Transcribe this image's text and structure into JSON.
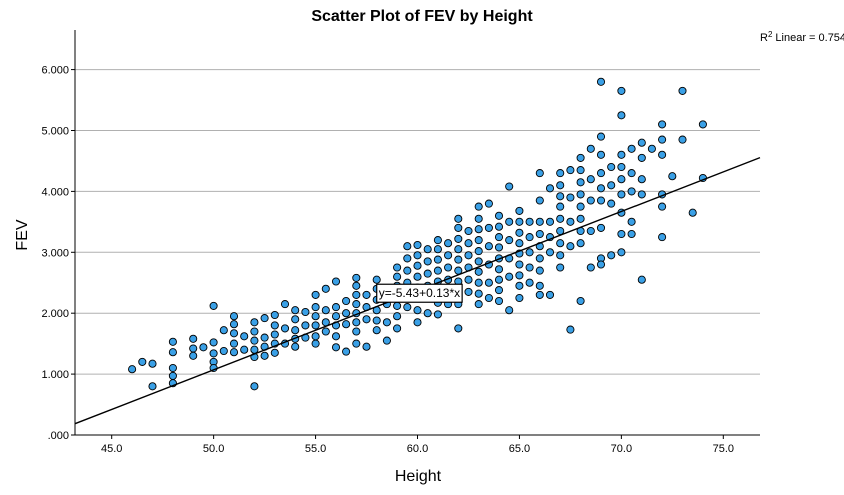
{
  "chart_data": {
    "type": "scatter",
    "title": "Scatter Plot of FEV by Height",
    "xlabel": "Height",
    "ylabel": "FEV",
    "xlim": [
      43.2,
      76.8
    ],
    "ylim": [
      0.0,
      6.65
    ],
    "xticks": [
      "45.0",
      "50.0",
      "55.0",
      "60.0",
      "65.0",
      "70.0",
      "75.0"
    ],
    "yticks": [
      ".000",
      "1.000",
      "2.000",
      "3.000",
      "4.000",
      "5.000",
      "6.000"
    ],
    "grid": "horizontal",
    "r2_label": "Linear = 0.754",
    "fit": {
      "intercept": -5.43,
      "slope": 0.13,
      "equation_label": "y=-5.43+0.13*x"
    },
    "colors": {
      "marker_fill": "#3aa0e6",
      "marker_edge": "#000000",
      "gridline": "#b0b0b0",
      "fit_line": "#000000"
    },
    "series": [
      {
        "points": [
          [
            46,
            1.08
          ],
          [
            46.5,
            1.2
          ],
          [
            47,
            1.17
          ],
          [
            47,
            0.8
          ],
          [
            48,
            1.53
          ],
          [
            48,
            1.36
          ],
          [
            48,
            1.1
          ],
          [
            48,
            0.97
          ],
          [
            48,
            0.85
          ],
          [
            49,
            1.58
          ],
          [
            49,
            1.42
          ],
          [
            49,
            1.3
          ],
          [
            49.5,
            1.44
          ],
          [
            50,
            2.12
          ],
          [
            50,
            1.52
          ],
          [
            50,
            1.34
          ],
          [
            50,
            1.2
          ],
          [
            50,
            1.1
          ],
          [
            50.5,
            1.72
          ],
          [
            50.5,
            1.38
          ],
          [
            51,
            1.95
          ],
          [
            51,
            1.82
          ],
          [
            51,
            1.67
          ],
          [
            51,
            1.5
          ],
          [
            51,
            1.36
          ],
          [
            51.5,
            1.62
          ],
          [
            51.5,
            1.4
          ],
          [
            52,
            1.85
          ],
          [
            52,
            1.7
          ],
          [
            52,
            1.55
          ],
          [
            52,
            1.4
          ],
          [
            52,
            1.28
          ],
          [
            52,
            0.8
          ],
          [
            52.5,
            1.92
          ],
          [
            52.5,
            1.6
          ],
          [
            52.5,
            1.45
          ],
          [
            52.5,
            1.3
          ],
          [
            53,
            1.97
          ],
          [
            53,
            1.8
          ],
          [
            53,
            1.65
          ],
          [
            53,
            1.5
          ],
          [
            53,
            1.35
          ],
          [
            53.5,
            2.15
          ],
          [
            53.5,
            1.75
          ],
          [
            53.5,
            1.5
          ],
          [
            54,
            2.05
          ],
          [
            54,
            1.9
          ],
          [
            54,
            1.72
          ],
          [
            54,
            1.58
          ],
          [
            54,
            1.45
          ],
          [
            54.5,
            2.02
          ],
          [
            54.5,
            1.8
          ],
          [
            54.5,
            1.6
          ],
          [
            55,
            2.3
          ],
          [
            55,
            2.1
          ],
          [
            55,
            1.95
          ],
          [
            55,
            1.8
          ],
          [
            55,
            1.62
          ],
          [
            55,
            1.5
          ],
          [
            55.5,
            2.4
          ],
          [
            55.5,
            2.05
          ],
          [
            55.5,
            1.85
          ],
          [
            55.5,
            1.7
          ],
          [
            56,
            2.52
          ],
          [
            56,
            2.1
          ],
          [
            56,
            1.95
          ],
          [
            56,
            1.8
          ],
          [
            56,
            1.62
          ],
          [
            56,
            1.44
          ],
          [
            56.5,
            2.2
          ],
          [
            56.5,
            2.0
          ],
          [
            56.5,
            1.82
          ],
          [
            56.5,
            1.37
          ],
          [
            57,
            2.58
          ],
          [
            57,
            2.45
          ],
          [
            57,
            2.3
          ],
          [
            57,
            2.15
          ],
          [
            57,
            2.0
          ],
          [
            57,
            1.85
          ],
          [
            57,
            1.7
          ],
          [
            57,
            1.5
          ],
          [
            57.5,
            2.3
          ],
          [
            57.5,
            2.1
          ],
          [
            57.5,
            1.9
          ],
          [
            57.5,
            1.45
          ],
          [
            58,
            2.55
          ],
          [
            58,
            2.4
          ],
          [
            58,
            2.22
          ],
          [
            58,
            2.05
          ],
          [
            58,
            1.88
          ],
          [
            58,
            1.72
          ],
          [
            58.5,
            2.4
          ],
          [
            58.5,
            2.15
          ],
          [
            58.5,
            1.85
          ],
          [
            58.5,
            1.55
          ],
          [
            59,
            2.75
          ],
          [
            59,
            2.6
          ],
          [
            59,
            2.45
          ],
          [
            59,
            2.3
          ],
          [
            59,
            2.12
          ],
          [
            59,
            1.95
          ],
          [
            59,
            1.75
          ],
          [
            59.5,
            3.1
          ],
          [
            59.5,
            2.9
          ],
          [
            59.5,
            2.7
          ],
          [
            59.5,
            2.5
          ],
          [
            59.5,
            2.3
          ],
          [
            59.5,
            2.1
          ],
          [
            60,
            3.12
          ],
          [
            60,
            2.95
          ],
          [
            60,
            2.78
          ],
          [
            60,
            2.6
          ],
          [
            60,
            2.42
          ],
          [
            60,
            2.25
          ],
          [
            60,
            2.05
          ],
          [
            60,
            1.85
          ],
          [
            60.5,
            3.05
          ],
          [
            60.5,
            2.85
          ],
          [
            60.5,
            2.65
          ],
          [
            60.5,
            2.45
          ],
          [
            60.5,
            2.25
          ],
          [
            60.5,
            2.0
          ],
          [
            61,
            3.2
          ],
          [
            61,
            3.05
          ],
          [
            61,
            2.88
          ],
          [
            61,
            2.7
          ],
          [
            61,
            2.52
          ],
          [
            61,
            2.35
          ],
          [
            61,
            2.17
          ],
          [
            61,
            1.98
          ],
          [
            61.5,
            3.15
          ],
          [
            61.5,
            2.95
          ],
          [
            61.5,
            2.75
          ],
          [
            61.5,
            2.55
          ],
          [
            61.5,
            2.35
          ],
          [
            61.5,
            2.15
          ],
          [
            62,
            3.55
          ],
          [
            62,
            3.4
          ],
          [
            62,
            3.22
          ],
          [
            62,
            3.05
          ],
          [
            62,
            2.88
          ],
          [
            62,
            2.7
          ],
          [
            62,
            2.52
          ],
          [
            62,
            2.33
          ],
          [
            62,
            2.15
          ],
          [
            62,
            1.75
          ],
          [
            62.5,
            3.35
          ],
          [
            62.5,
            3.15
          ],
          [
            62.5,
            2.95
          ],
          [
            62.5,
            2.75
          ],
          [
            62.5,
            2.55
          ],
          [
            62.5,
            2.35
          ],
          [
            63,
            3.75
          ],
          [
            63,
            3.55
          ],
          [
            63,
            3.38
          ],
          [
            63,
            3.2
          ],
          [
            63,
            3.02
          ],
          [
            63,
            2.85
          ],
          [
            63,
            2.68
          ],
          [
            63,
            2.5
          ],
          [
            63,
            2.32
          ],
          [
            63,
            2.15
          ],
          [
            63.5,
            3.8
          ],
          [
            63.5,
            3.4
          ],
          [
            63.5,
            3.1
          ],
          [
            63.5,
            2.8
          ],
          [
            63.5,
            2.5
          ],
          [
            63.5,
            2.25
          ],
          [
            64,
            3.6
          ],
          [
            64,
            3.42
          ],
          [
            64,
            3.25
          ],
          [
            64,
            3.08
          ],
          [
            64,
            2.9
          ],
          [
            64,
            2.72
          ],
          [
            64,
            2.55
          ],
          [
            64,
            2.38
          ],
          [
            64,
            2.2
          ],
          [
            64.5,
            4.08
          ],
          [
            64.5,
            3.5
          ],
          [
            64.5,
            3.2
          ],
          [
            64.5,
            2.9
          ],
          [
            64.5,
            2.6
          ],
          [
            64.5,
            2.05
          ],
          [
            65,
            3.68
          ],
          [
            65,
            3.5
          ],
          [
            65,
            3.32
          ],
          [
            65,
            3.15
          ],
          [
            65,
            2.98
          ],
          [
            65,
            2.8
          ],
          [
            65,
            2.62
          ],
          [
            65,
            2.45
          ],
          [
            65,
            2.25
          ],
          [
            65.5,
            3.5
          ],
          [
            65.5,
            3.25
          ],
          [
            65.5,
            3.0
          ],
          [
            65.5,
            2.75
          ],
          [
            65.5,
            2.5
          ],
          [
            66,
            4.3
          ],
          [
            66,
            3.85
          ],
          [
            66,
            3.5
          ],
          [
            66,
            3.3
          ],
          [
            66,
            3.1
          ],
          [
            66,
            2.9
          ],
          [
            66,
            2.7
          ],
          [
            66,
            2.45
          ],
          [
            66,
            2.3
          ],
          [
            66.5,
            4.05
          ],
          [
            66.5,
            3.5
          ],
          [
            66.5,
            3.25
          ],
          [
            66.5,
            3.0
          ],
          [
            66.5,
            2.3
          ],
          [
            67,
            4.3
          ],
          [
            67,
            4.1
          ],
          [
            67,
            3.92
          ],
          [
            67,
            3.75
          ],
          [
            67,
            3.55
          ],
          [
            67,
            3.35
          ],
          [
            67,
            3.15
          ],
          [
            67,
            2.95
          ],
          [
            67,
            2.75
          ],
          [
            67.5,
            4.35
          ],
          [
            67.5,
            3.9
          ],
          [
            67.5,
            3.5
          ],
          [
            67.5,
            3.1
          ],
          [
            67.5,
            1.73
          ],
          [
            68,
            4.55
          ],
          [
            68,
            4.35
          ],
          [
            68,
            4.15
          ],
          [
            68,
            3.95
          ],
          [
            68,
            3.75
          ],
          [
            68,
            3.55
          ],
          [
            68,
            3.35
          ],
          [
            68,
            3.15
          ],
          [
            68,
            2.2
          ],
          [
            68.5,
            4.7
          ],
          [
            68.5,
            4.2
          ],
          [
            68.5,
            3.85
          ],
          [
            68.5,
            3.35
          ],
          [
            68.5,
            2.75
          ],
          [
            69,
            5.8
          ],
          [
            69,
            4.9
          ],
          [
            69,
            4.6
          ],
          [
            69,
            4.3
          ],
          [
            69,
            4.05
          ],
          [
            69,
            3.85
          ],
          [
            69,
            3.4
          ],
          [
            69,
            2.9
          ],
          [
            69,
            2.8
          ],
          [
            69.5,
            4.4
          ],
          [
            69.5,
            4.1
          ],
          [
            69.5,
            3.8
          ],
          [
            69.5,
            2.95
          ],
          [
            70,
            5.65
          ],
          [
            70,
            5.25
          ],
          [
            70,
            4.6
          ],
          [
            70,
            4.4
          ],
          [
            70,
            4.2
          ],
          [
            70,
            3.95
          ],
          [
            70,
            3.65
          ],
          [
            70,
            3.3
          ],
          [
            70,
            3.0
          ],
          [
            70.5,
            4.7
          ],
          [
            70.5,
            4.3
          ],
          [
            70.5,
            4.0
          ],
          [
            70.5,
            3.5
          ],
          [
            70.5,
            3.3
          ],
          [
            71,
            4.8
          ],
          [
            71,
            4.55
          ],
          [
            71,
            4.2
          ],
          [
            71,
            3.95
          ],
          [
            71,
            2.55
          ],
          [
            71.5,
            4.7
          ],
          [
            72,
            5.1
          ],
          [
            72,
            4.85
          ],
          [
            72,
            4.6
          ],
          [
            72,
            3.95
          ],
          [
            72,
            3.75
          ],
          [
            72,
            3.25
          ],
          [
            72.5,
            4.25
          ],
          [
            73,
            5.65
          ],
          [
            73,
            4.85
          ],
          [
            73.5,
            3.65
          ],
          [
            74,
            5.1
          ],
          [
            74,
            4.22
          ]
        ]
      }
    ]
  }
}
